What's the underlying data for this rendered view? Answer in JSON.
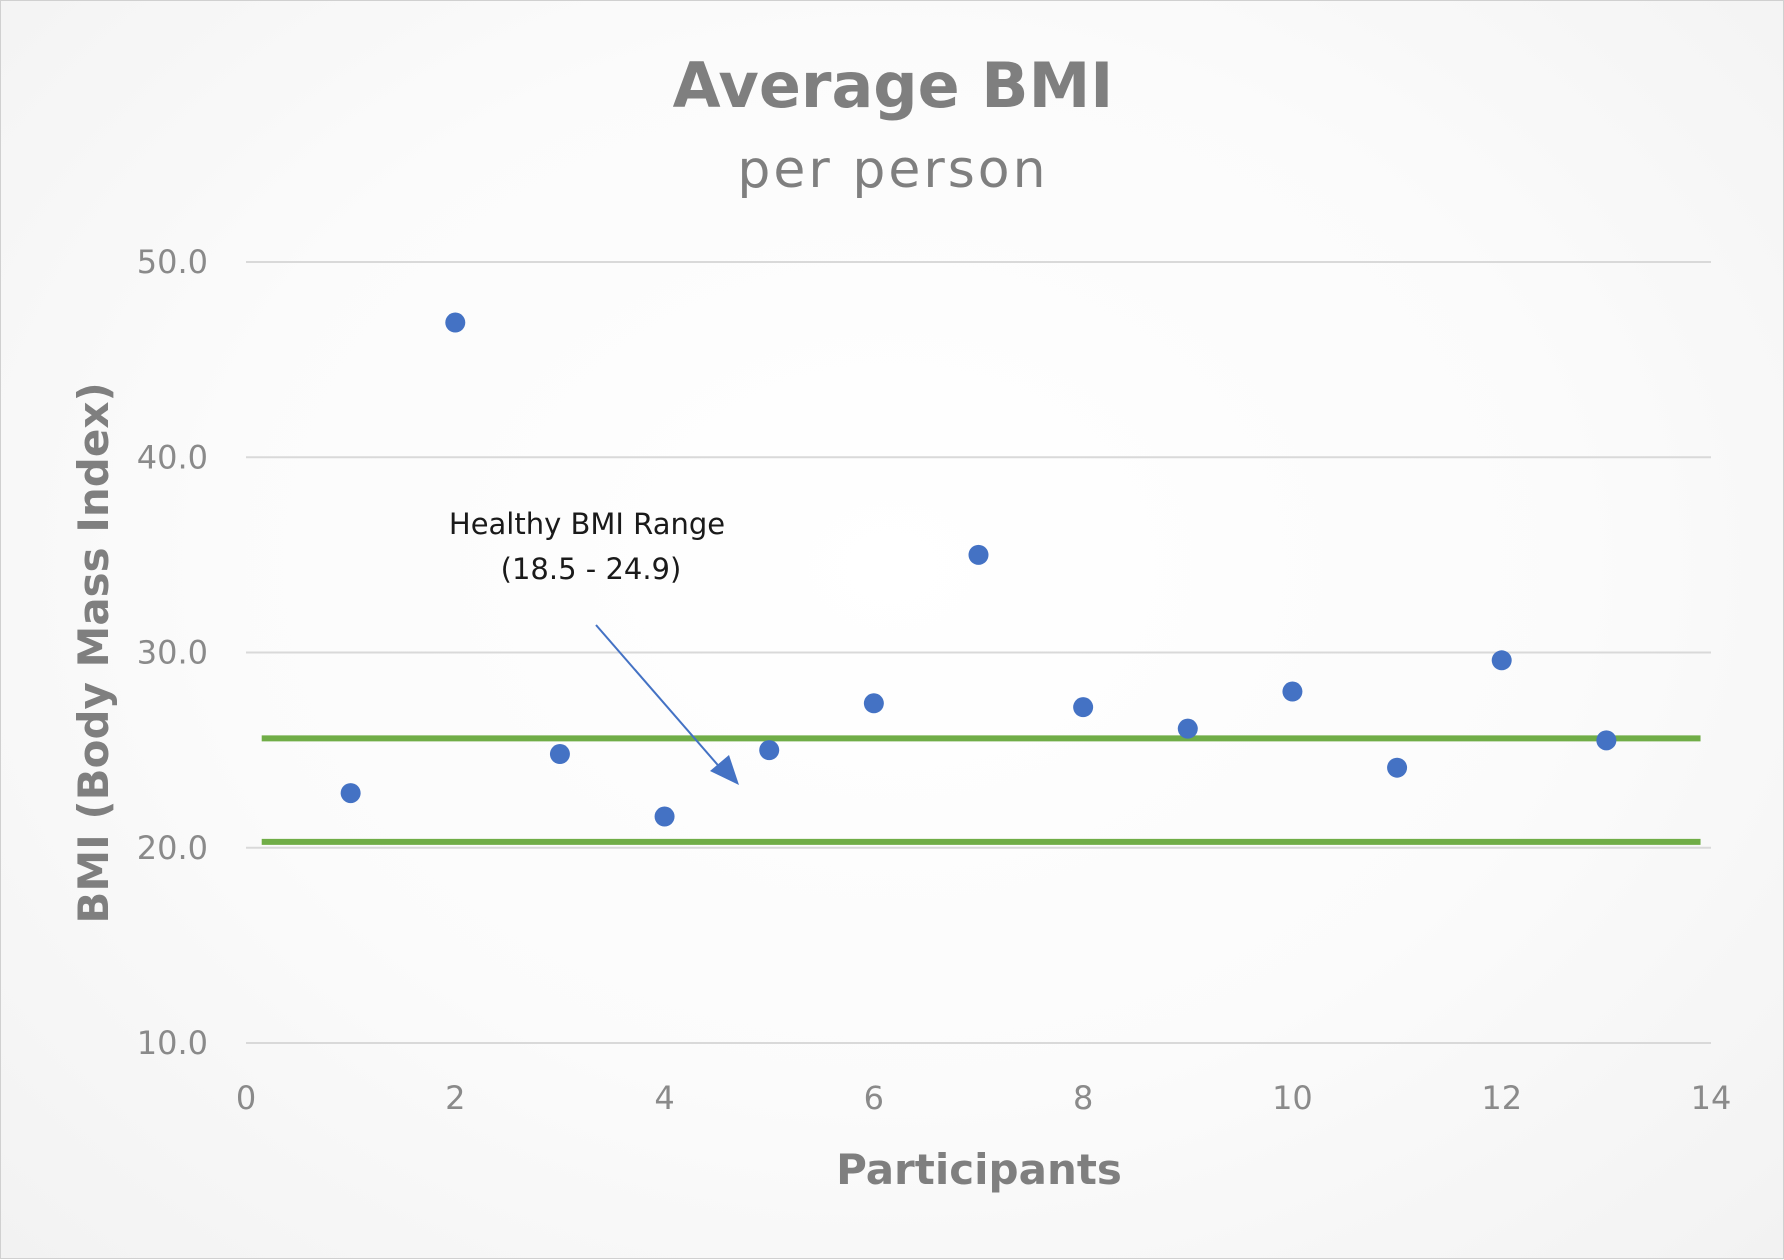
{
  "chart_data": {
    "type": "scatter",
    "title": "Average BMI",
    "subtitle": "per person",
    "xlabel": "Participants",
    "ylabel": "BMI (Body Mass Index)",
    "xlim": [
      0,
      14
    ],
    "ylim": [
      10,
      50
    ],
    "x_ticks": [
      "0",
      "2",
      "4",
      "6",
      "8",
      "10",
      "12",
      "14"
    ],
    "y_ticks": [
      "10.0",
      "20.0",
      "30.0",
      "40.0",
      "50.0"
    ],
    "grid": true,
    "point_color": "#4472c4",
    "points": [
      {
        "x": 1,
        "y": 22.8
      },
      {
        "x": 2,
        "y": 46.9
      },
      {
        "x": 3,
        "y": 24.8
      },
      {
        "x": 4,
        "y": 21.6
      },
      {
        "x": 5,
        "y": 25.0
      },
      {
        "x": 6,
        "y": 27.4
      },
      {
        "x": 7,
        "y": 35.0
      },
      {
        "x": 8,
        "y": 27.2
      },
      {
        "x": 9,
        "y": 26.1
      },
      {
        "x": 10,
        "y": 28.0
      },
      {
        "x": 11,
        "y": 24.1
      },
      {
        "x": 12,
        "y": 29.6
      },
      {
        "x": 13,
        "y": 25.5
      }
    ],
    "reference_lines": [
      {
        "y": 25.6,
        "x_range": [
          0.15,
          13.9
        ],
        "color": "#70ad47"
      },
      {
        "y": 20.3,
        "x_range": [
          0.15,
          13.9
        ],
        "color": "#70ad47"
      }
    ],
    "annotation": {
      "lines": [
        "Healthy BMI Range",
        "(18.5 - 24.9)"
      ],
      "color": "#4472c4"
    }
  }
}
